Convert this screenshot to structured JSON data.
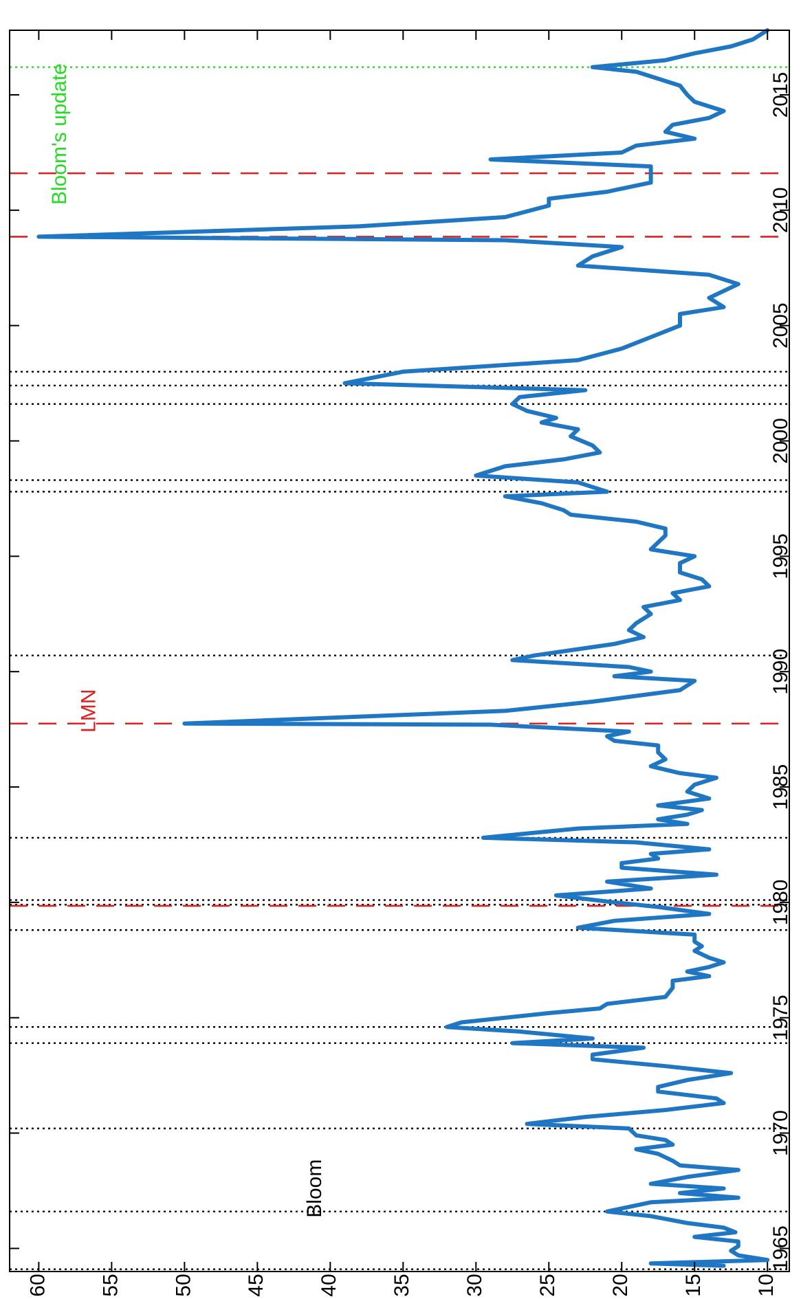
{
  "chart_data": {
    "type": "line",
    "orientation": "rotated-90-clockwise",
    "title": "",
    "xlabel": "",
    "ylabel": "",
    "xlim": [
      1964.0,
      2017.8
    ],
    "ylim": [
      8.5,
      62.0
    ],
    "x_ticks": [
      1965,
      1970,
      1975,
      1980,
      1985,
      1990,
      1995,
      2000,
      2005,
      2010,
      2015
    ],
    "y_ticks": [
      10,
      15,
      20,
      25,
      30,
      35,
      40,
      45,
      50,
      55,
      60
    ],
    "grid": false,
    "line_color": "#1f77c4",
    "series": [
      {
        "values": [
          [
            1964.25,
            13
          ],
          [
            1964.35,
            18
          ],
          [
            1964.5,
            10
          ],
          [
            1964.7,
            12
          ],
          [
            1964.9,
            12.5
          ],
          [
            1965.1,
            12
          ],
          [
            1965.3,
            12
          ],
          [
            1965.5,
            15
          ],
          [
            1965.7,
            12.2
          ],
          [
            1965.9,
            13
          ],
          [
            1966.1,
            15.5
          ],
          [
            1966.4,
            18
          ],
          [
            1966.6,
            21
          ],
          [
            1967.0,
            18
          ],
          [
            1967.2,
            12
          ],
          [
            1967.4,
            16
          ],
          [
            1967.6,
            13
          ],
          [
            1967.8,
            18
          ],
          [
            1968.1,
            15.5
          ],
          [
            1968.4,
            12
          ],
          [
            1968.6,
            16
          ],
          [
            1968.8,
            16.5
          ],
          [
            1969.1,
            17.5
          ],
          [
            1969.3,
            19
          ],
          [
            1969.5,
            16.5
          ],
          [
            1969.7,
            17
          ],
          [
            1969.9,
            19
          ],
          [
            1970.2,
            19.5
          ],
          [
            1970.4,
            26.5
          ],
          [
            1970.7,
            22.5
          ],
          [
            1971.0,
            17
          ],
          [
            1971.3,
            13
          ],
          [
            1971.5,
            13.5
          ],
          [
            1971.8,
            17.5
          ],
          [
            1972.0,
            17.5
          ],
          [
            1972.3,
            15.5
          ],
          [
            1972.6,
            12.5
          ],
          [
            1972.9,
            17
          ],
          [
            1973.2,
            22
          ],
          [
            1973.4,
            22
          ],
          [
            1973.7,
            18.5
          ],
          [
            1973.9,
            27.5
          ],
          [
            1974.1,
            22
          ],
          [
            1974.4,
            27
          ],
          [
            1974.6,
            32
          ],
          [
            1974.8,
            31
          ],
          [
            1975.2,
            25
          ],
          [
            1975.4,
            21.5
          ],
          [
            1975.6,
            21
          ],
          [
            1975.9,
            17
          ],
          [
            1976.3,
            16.5
          ],
          [
            1976.6,
            16.5
          ],
          [
            1976.8,
            14
          ],
          [
            1977.0,
            15.5
          ],
          [
            1977.2,
            14
          ],
          [
            1977.4,
            13
          ],
          [
            1977.6,
            14
          ],
          [
            1977.9,
            15
          ],
          [
            1978.1,
            14.5
          ],
          [
            1978.3,
            15
          ],
          [
            1978.6,
            15
          ],
          [
            1978.9,
            23
          ],
          [
            1979.2,
            20.5
          ],
          [
            1979.5,
            14
          ],
          [
            1979.8,
            17.5
          ],
          [
            1980.0,
            20.5
          ],
          [
            1980.3,
            24.5
          ],
          [
            1980.6,
            18
          ],
          [
            1980.9,
            21
          ],
          [
            1981.2,
            13.5
          ],
          [
            1981.5,
            20
          ],
          [
            1981.7,
            20
          ],
          [
            1981.9,
            17.5
          ],
          [
            1982.1,
            18
          ],
          [
            1982.3,
            14
          ],
          [
            1982.6,
            19
          ],
          [
            1982.8,
            29.5
          ],
          [
            1983.2,
            23
          ],
          [
            1983.4,
            15.5
          ],
          [
            1983.6,
            17.5
          ],
          [
            1983.8,
            15.5
          ],
          [
            1984.0,
            14.5
          ],
          [
            1984.2,
            17.5
          ],
          [
            1984.5,
            14
          ],
          [
            1984.8,
            15.5
          ],
          [
            1985.1,
            15
          ],
          [
            1985.4,
            13.5
          ],
          [
            1985.6,
            16
          ],
          [
            1985.9,
            18
          ],
          [
            1986.2,
            17
          ],
          [
            1986.5,
            17.5
          ],
          [
            1986.8,
            17.5
          ],
          [
            1987.0,
            20.5
          ],
          [
            1987.2,
            21
          ],
          [
            1987.4,
            19.5
          ],
          [
            1987.7,
            29
          ],
          [
            1987.75,
            50
          ],
          [
            1988.3,
            28
          ],
          [
            1988.7,
            22
          ],
          [
            1989.2,
            16
          ],
          [
            1989.6,
            15
          ],
          [
            1989.8,
            20.5
          ],
          [
            1990.0,
            18
          ],
          [
            1990.2,
            19.5
          ],
          [
            1990.5,
            27.5
          ],
          [
            1990.7,
            26
          ],
          [
            1991.2,
            20.5
          ],
          [
            1991.5,
            18.5
          ],
          [
            1991.8,
            19.5
          ],
          [
            1992.1,
            19
          ],
          [
            1992.5,
            18
          ],
          [
            1992.8,
            18.5
          ],
          [
            1993.1,
            16
          ],
          [
            1993.4,
            16.5
          ],
          [
            1993.7,
            14
          ],
          [
            1994.0,
            14.5
          ],
          [
            1994.3,
            16
          ],
          [
            1994.7,
            16
          ],
          [
            1995.0,
            15
          ],
          [
            1995.3,
            18
          ],
          [
            1995.6,
            17.5
          ],
          [
            1995.9,
            17
          ],
          [
            1996.2,
            17
          ],
          [
            1996.5,
            19
          ],
          [
            1996.8,
            23.5
          ],
          [
            1997.0,
            24
          ],
          [
            1997.3,
            25.5
          ],
          [
            1997.6,
            28
          ],
          [
            1997.8,
            21
          ],
          [
            1998.0,
            22
          ],
          [
            1998.2,
            23
          ],
          [
            1998.5,
            30
          ],
          [
            1998.9,
            28
          ],
          [
            1999.2,
            24
          ],
          [
            1999.5,
            21.5
          ],
          [
            1999.8,
            22
          ],
          [
            2000.2,
            23.5
          ],
          [
            2000.5,
            23
          ],
          [
            2000.8,
            25.5
          ],
          [
            2001.0,
            24.5
          ],
          [
            2001.3,
            26.5
          ],
          [
            2001.6,
            27.5
          ],
          [
            2001.9,
            27
          ],
          [
            2002.2,
            22.5
          ],
          [
            2002.5,
            39
          ],
          [
            2003.0,
            35
          ],
          [
            2003.5,
            23
          ],
          [
            2004.0,
            20
          ],
          [
            2004.5,
            18
          ],
          [
            2005.0,
            16
          ],
          [
            2005.5,
            16
          ],
          [
            2005.8,
            13
          ],
          [
            2006.2,
            14
          ],
          [
            2006.5,
            13
          ],
          [
            2006.8,
            12
          ],
          [
            2007.2,
            14
          ],
          [
            2007.6,
            23
          ],
          [
            2008.0,
            22
          ],
          [
            2008.4,
            20
          ],
          [
            2008.7,
            28
          ],
          [
            2008.85,
            60
          ],
          [
            2009.3,
            38
          ],
          [
            2009.7,
            28
          ],
          [
            2010.2,
            25
          ],
          [
            2010.5,
            25
          ],
          [
            2010.8,
            21
          ],
          [
            2011.2,
            18
          ],
          [
            2011.7,
            18
          ],
          [
            2011.9,
            18
          ],
          [
            2012.2,
            29
          ],
          [
            2012.5,
            20
          ],
          [
            2012.8,
            19
          ],
          [
            2013.1,
            15
          ],
          [
            2013.4,
            17
          ],
          [
            2013.7,
            16.5
          ],
          [
            2014.0,
            14
          ],
          [
            2014.3,
            13
          ],
          [
            2014.7,
            15
          ],
          [
            2015.0,
            15.5
          ],
          [
            2015.4,
            16
          ],
          [
            2015.8,
            18
          ],
          [
            2016.0,
            19
          ],
          [
            2016.2,
            22
          ],
          [
            2016.5,
            17
          ],
          [
            2016.8,
            15
          ],
          [
            2017.1,
            12.5
          ],
          [
            2017.4,
            11
          ],
          [
            2017.8,
            10
          ]
        ]
      }
    ],
    "vertical_lines": [
      {
        "style": "dotted",
        "color": "#000000",
        "x": [
          1964.1,
          1966.6,
          1970.2,
          1973.9,
          1974.6,
          1978.8,
          1979.9,
          1980.1,
          1982.8,
          1990.7,
          1997.8,
          1998.3,
          2001.6,
          2002.4,
          2003.0
        ]
      },
      {
        "style": "dashed",
        "color": "#e02020",
        "x": [
          1979.85,
          1987.75,
          2008.85,
          2011.6
        ]
      },
      {
        "style": "dotted",
        "color": "#22dd22",
        "x": [
          2016.2
        ]
      }
    ],
    "annotations": [
      {
        "text": "Bloom",
        "x": 1967.6,
        "y": 41,
        "color": "#000000"
      },
      {
        "text": "LMN",
        "x": 1988.3,
        "y": 56.5,
        "color": "#e02020"
      },
      {
        "text": "Bloom's update",
        "x": 2013.3,
        "y": 58.5,
        "color": "#22dd22"
      }
    ]
  }
}
